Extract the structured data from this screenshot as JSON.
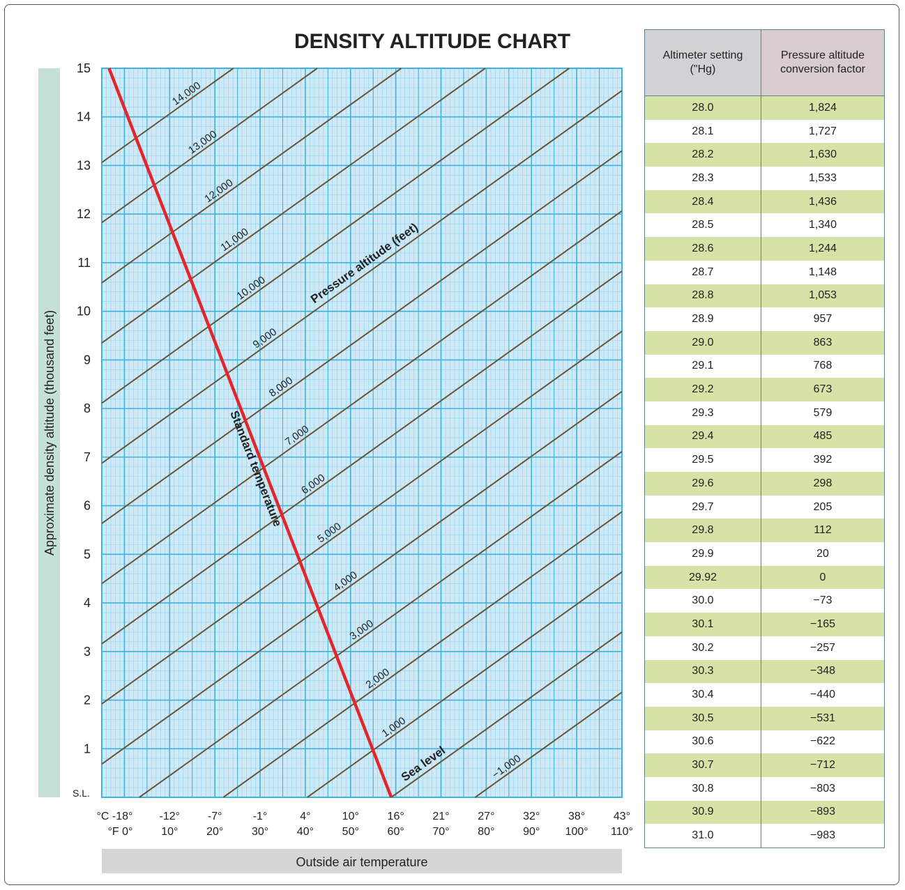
{
  "chart_data": {
    "type": "line",
    "title": "DENSITY ALTITUDE CHART",
    "ylabel": "Approximate density altitude (thousand feet)",
    "xlabel": "Outside air temperature",
    "y_ticks": [
      "S.L.",
      "1",
      "2",
      "3",
      "4",
      "5",
      "6",
      "7",
      "8",
      "9",
      "10",
      "11",
      "12",
      "13",
      "14",
      "15"
    ],
    "ylim": [
      0,
      15
    ],
    "x_range_f": [
      -5,
      110
    ],
    "x_ticks_c": [
      "°C -18°",
      "-12°",
      "-7°",
      "-1°",
      "4°",
      "10°",
      "16°",
      "21°",
      "27°",
      "32°",
      "38°",
      "43°"
    ],
    "x_ticks_f": [
      "°F  0°",
      "10°",
      "20°",
      "30°",
      "40°",
      "50°",
      "60°",
      "70°",
      "80°",
      "90°",
      "100°",
      "110°"
    ],
    "grid": true,
    "standard_temperature": {
      "label": "Standard temperature",
      "points_f_ft": [
        [
          59,
          0
        ],
        [
          -3.4,
          15000
        ]
      ]
    },
    "pressure_altitude_label": "Pressure altitude (feet)",
    "sea_level_label": "Sea level",
    "pressure_altitude_lines": [
      {
        "pa": -1000,
        "label": "−1,000"
      },
      {
        "pa": 0,
        "label": ""
      },
      {
        "pa": 1000,
        "label": "1,000"
      },
      {
        "pa": 2000,
        "label": "2,000"
      },
      {
        "pa": 3000,
        "label": "3,000"
      },
      {
        "pa": 4000,
        "label": "4,000"
      },
      {
        "pa": 5000,
        "label": "5,000"
      },
      {
        "pa": 6000,
        "label": "6,000"
      },
      {
        "pa": 7000,
        "label": "7,000"
      },
      {
        "pa": 8000,
        "label": "8,000"
      },
      {
        "pa": 9000,
        "label": "9,000"
      },
      {
        "pa": 10000,
        "label": "10,000"
      },
      {
        "pa": 11000,
        "label": "11,000"
      },
      {
        "pa": 12000,
        "label": "12,000"
      },
      {
        "pa": 13000,
        "label": "13,000"
      },
      {
        "pa": 14000,
        "label": "14,000"
      }
    ],
    "colors": {
      "grid_bg": "#cfeaf6",
      "grid_major": "#3fb2e0",
      "grid_minor": "#8fd2ee",
      "pa_line": "#6b5436",
      "std_line": "#e3262c",
      "axis_band_y": "#c5e0d6",
      "axis_band_x": "#d6d6d6"
    }
  },
  "table": {
    "headers": [
      "Altimeter setting (\"Hg)",
      "Pressure altitude conversion factor"
    ],
    "rows": [
      [
        "28.0",
        "1,824"
      ],
      [
        "28.1",
        "1,727"
      ],
      [
        "28.2",
        "1,630"
      ],
      [
        "28.3",
        "1,533"
      ],
      [
        "28.4",
        "1,436"
      ],
      [
        "28.5",
        "1,340"
      ],
      [
        "28.6",
        "1,244"
      ],
      [
        "28.7",
        "1,148"
      ],
      [
        "28.8",
        "1,053"
      ],
      [
        "28.9",
        "957"
      ],
      [
        "29.0",
        "863"
      ],
      [
        "29.1",
        "768"
      ],
      [
        "29.2",
        "673"
      ],
      [
        "29.3",
        "579"
      ],
      [
        "29.4",
        "485"
      ],
      [
        "29.5",
        "392"
      ],
      [
        "29.6",
        "298"
      ],
      [
        "29.7",
        "205"
      ],
      [
        "29.8",
        "112"
      ],
      [
        "29.9",
        "20"
      ],
      [
        "29.92",
        "0"
      ],
      [
        "30.0",
        "−73"
      ],
      [
        "30.1",
        "−165"
      ],
      [
        "30.2",
        "−257"
      ],
      [
        "30.3",
        "−348"
      ],
      [
        "30.4",
        "−440"
      ],
      [
        "30.5",
        "−531"
      ],
      [
        "30.6",
        "−622"
      ],
      [
        "30.7",
        "−712"
      ],
      [
        "30.8",
        "−803"
      ],
      [
        "30.9",
        "−893"
      ],
      [
        "31.0",
        "−983"
      ]
    ]
  }
}
